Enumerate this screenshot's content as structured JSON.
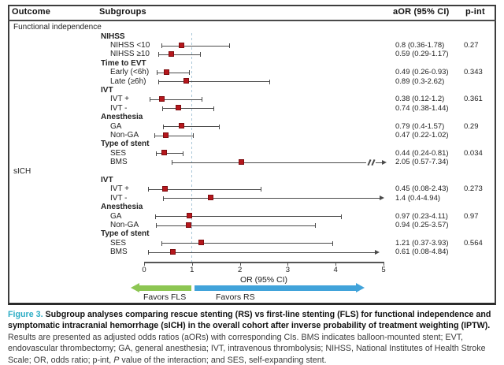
{
  "header": {
    "outcome": "Outcome",
    "subgroups": "Subgroups",
    "aor": "aOR (95% CI)",
    "pint": "p-int"
  },
  "colors": {
    "marker": "#b5171c",
    "ci": "#4a4a4a",
    "ref": "#a9c6d8",
    "green_arrow": "#8dc653",
    "blue_arrow": "#41a3da",
    "figure_label": "#2bacc4"
  },
  "chart_data": {
    "type": "forest",
    "xlabel": "OR (95% CI)",
    "xlim": [
      0,
      5
    ],
    "x_ticks": [
      0,
      1,
      2,
      3,
      4,
      5
    ],
    "reference_line": 1,
    "favors_left": "Favors FLS",
    "favors_right": "Favors RS",
    "rows": [
      {
        "type": "outcome",
        "label": "Functional independence"
      },
      {
        "type": "group",
        "label": "NIHSS"
      },
      {
        "type": "item",
        "label": "NIHSS <10",
        "or": 0.8,
        "lo": 0.36,
        "hi": 1.78,
        "aor": "0.8 (0.36-1.78)",
        "pint": "0.27"
      },
      {
        "type": "item",
        "label": "NIHSS ≥10",
        "or": 0.59,
        "lo": 0.29,
        "hi": 1.17,
        "aor": "0.59 (0.29-1.17)"
      },
      {
        "type": "group",
        "label": "Time to EVT"
      },
      {
        "type": "item",
        "label": "Early (<6h)",
        "or": 0.49,
        "lo": 0.26,
        "hi": 0.93,
        "aor": "0.49 (0.26-0.93)",
        "pint": "0.343"
      },
      {
        "type": "item",
        "label": "Late (≥6h)",
        "or": 0.89,
        "lo": 0.3,
        "hi": 2.62,
        "aor": "0.89 (0.3-2.62)"
      },
      {
        "type": "group",
        "label": "IVT"
      },
      {
        "type": "item",
        "label": "IVT +",
        "or": 0.38,
        "lo": 0.12,
        "hi": 1.2,
        "aor": "0.38 (0.12-1.2)",
        "pint": "0.361"
      },
      {
        "type": "item",
        "label": "IVT -",
        "or": 0.74,
        "lo": 0.38,
        "hi": 1.44,
        "aor": "0.74 (0.38-1.44)"
      },
      {
        "type": "group",
        "label": "Anesthesia"
      },
      {
        "type": "item",
        "label": "GA",
        "or": 0.79,
        "lo": 0.4,
        "hi": 1.57,
        "aor": "0.79 (0.4-1.57)",
        "pint": "0.29"
      },
      {
        "type": "item",
        "label": "Non-GA",
        "or": 0.47,
        "lo": 0.22,
        "hi": 1.02,
        "aor": "0.47 (0.22-1.02)"
      },
      {
        "type": "group",
        "label": "Type of stent"
      },
      {
        "type": "item",
        "label": "SES",
        "or": 0.44,
        "lo": 0.24,
        "hi": 0.81,
        "aor": "0.44 (0.24-0.81)",
        "pint": "0.034"
      },
      {
        "type": "item",
        "label": "BMS",
        "or": 2.05,
        "lo": 0.57,
        "hi": 7.34,
        "aor": "2.05 (0.57-7.34)",
        "clip": true
      },
      {
        "type": "outcome",
        "label": "sICH"
      },
      {
        "type": "group",
        "label": "IVT"
      },
      {
        "type": "item",
        "label": "IVT +",
        "or": 0.45,
        "lo": 0.08,
        "hi": 2.43,
        "aor": "0.45 (0.08-2.43)",
        "pint": "0.273"
      },
      {
        "type": "item",
        "label": "IVT -",
        "or": 1.4,
        "lo": 0.4,
        "hi": 4.94,
        "aor": "1.4 (0.4-4.94)",
        "arrow_hi": true
      },
      {
        "type": "group",
        "label": "Anesthesia"
      },
      {
        "type": "item",
        "label": "GA",
        "or": 0.97,
        "lo": 0.23,
        "hi": 4.11,
        "aor": "0.97 (0.23-4.11)",
        "pint": "0.97"
      },
      {
        "type": "item",
        "label": "Non-GA",
        "or": 0.94,
        "lo": 0.25,
        "hi": 3.57,
        "aor": "0.94 (0.25-3.57)"
      },
      {
        "type": "group",
        "label": "Type of stent"
      },
      {
        "type": "item",
        "label": "SES",
        "or": 1.21,
        "lo": 0.37,
        "hi": 3.93,
        "aor": "1.21 (0.37-3.93)",
        "pint": "0.564"
      },
      {
        "type": "item",
        "label": "BMS",
        "or": 0.61,
        "lo": 0.08,
        "hi": 4.84,
        "aor": "0.61 (0.08-4.84)",
        "arrow_hi": true
      }
    ]
  },
  "caption": {
    "label": "Figure 3.",
    "title": " Subgroup analyses comparing rescue stenting (RS) vs first-line stenting (FLS) for functional independence and symptomatic intracranial hemorrhage (sICH) in the overall cohort after inverse probability of treatment weighting (IPTW).",
    "body_a": " Results are presented as adjusted odds ratios (aORs) with corresponding CIs. BMS indicates balloon-mounted stent; EVT, endovascular thrombectomy; GA, general anesthesia; IVT, intravenous thrombolysis; NIHSS, National Institutes of Health Stroke Scale; OR, odds ratio; p-int, ",
    "body_p": "P",
    "body_b": " value of the interaction; and SES, self-expanding stent."
  }
}
